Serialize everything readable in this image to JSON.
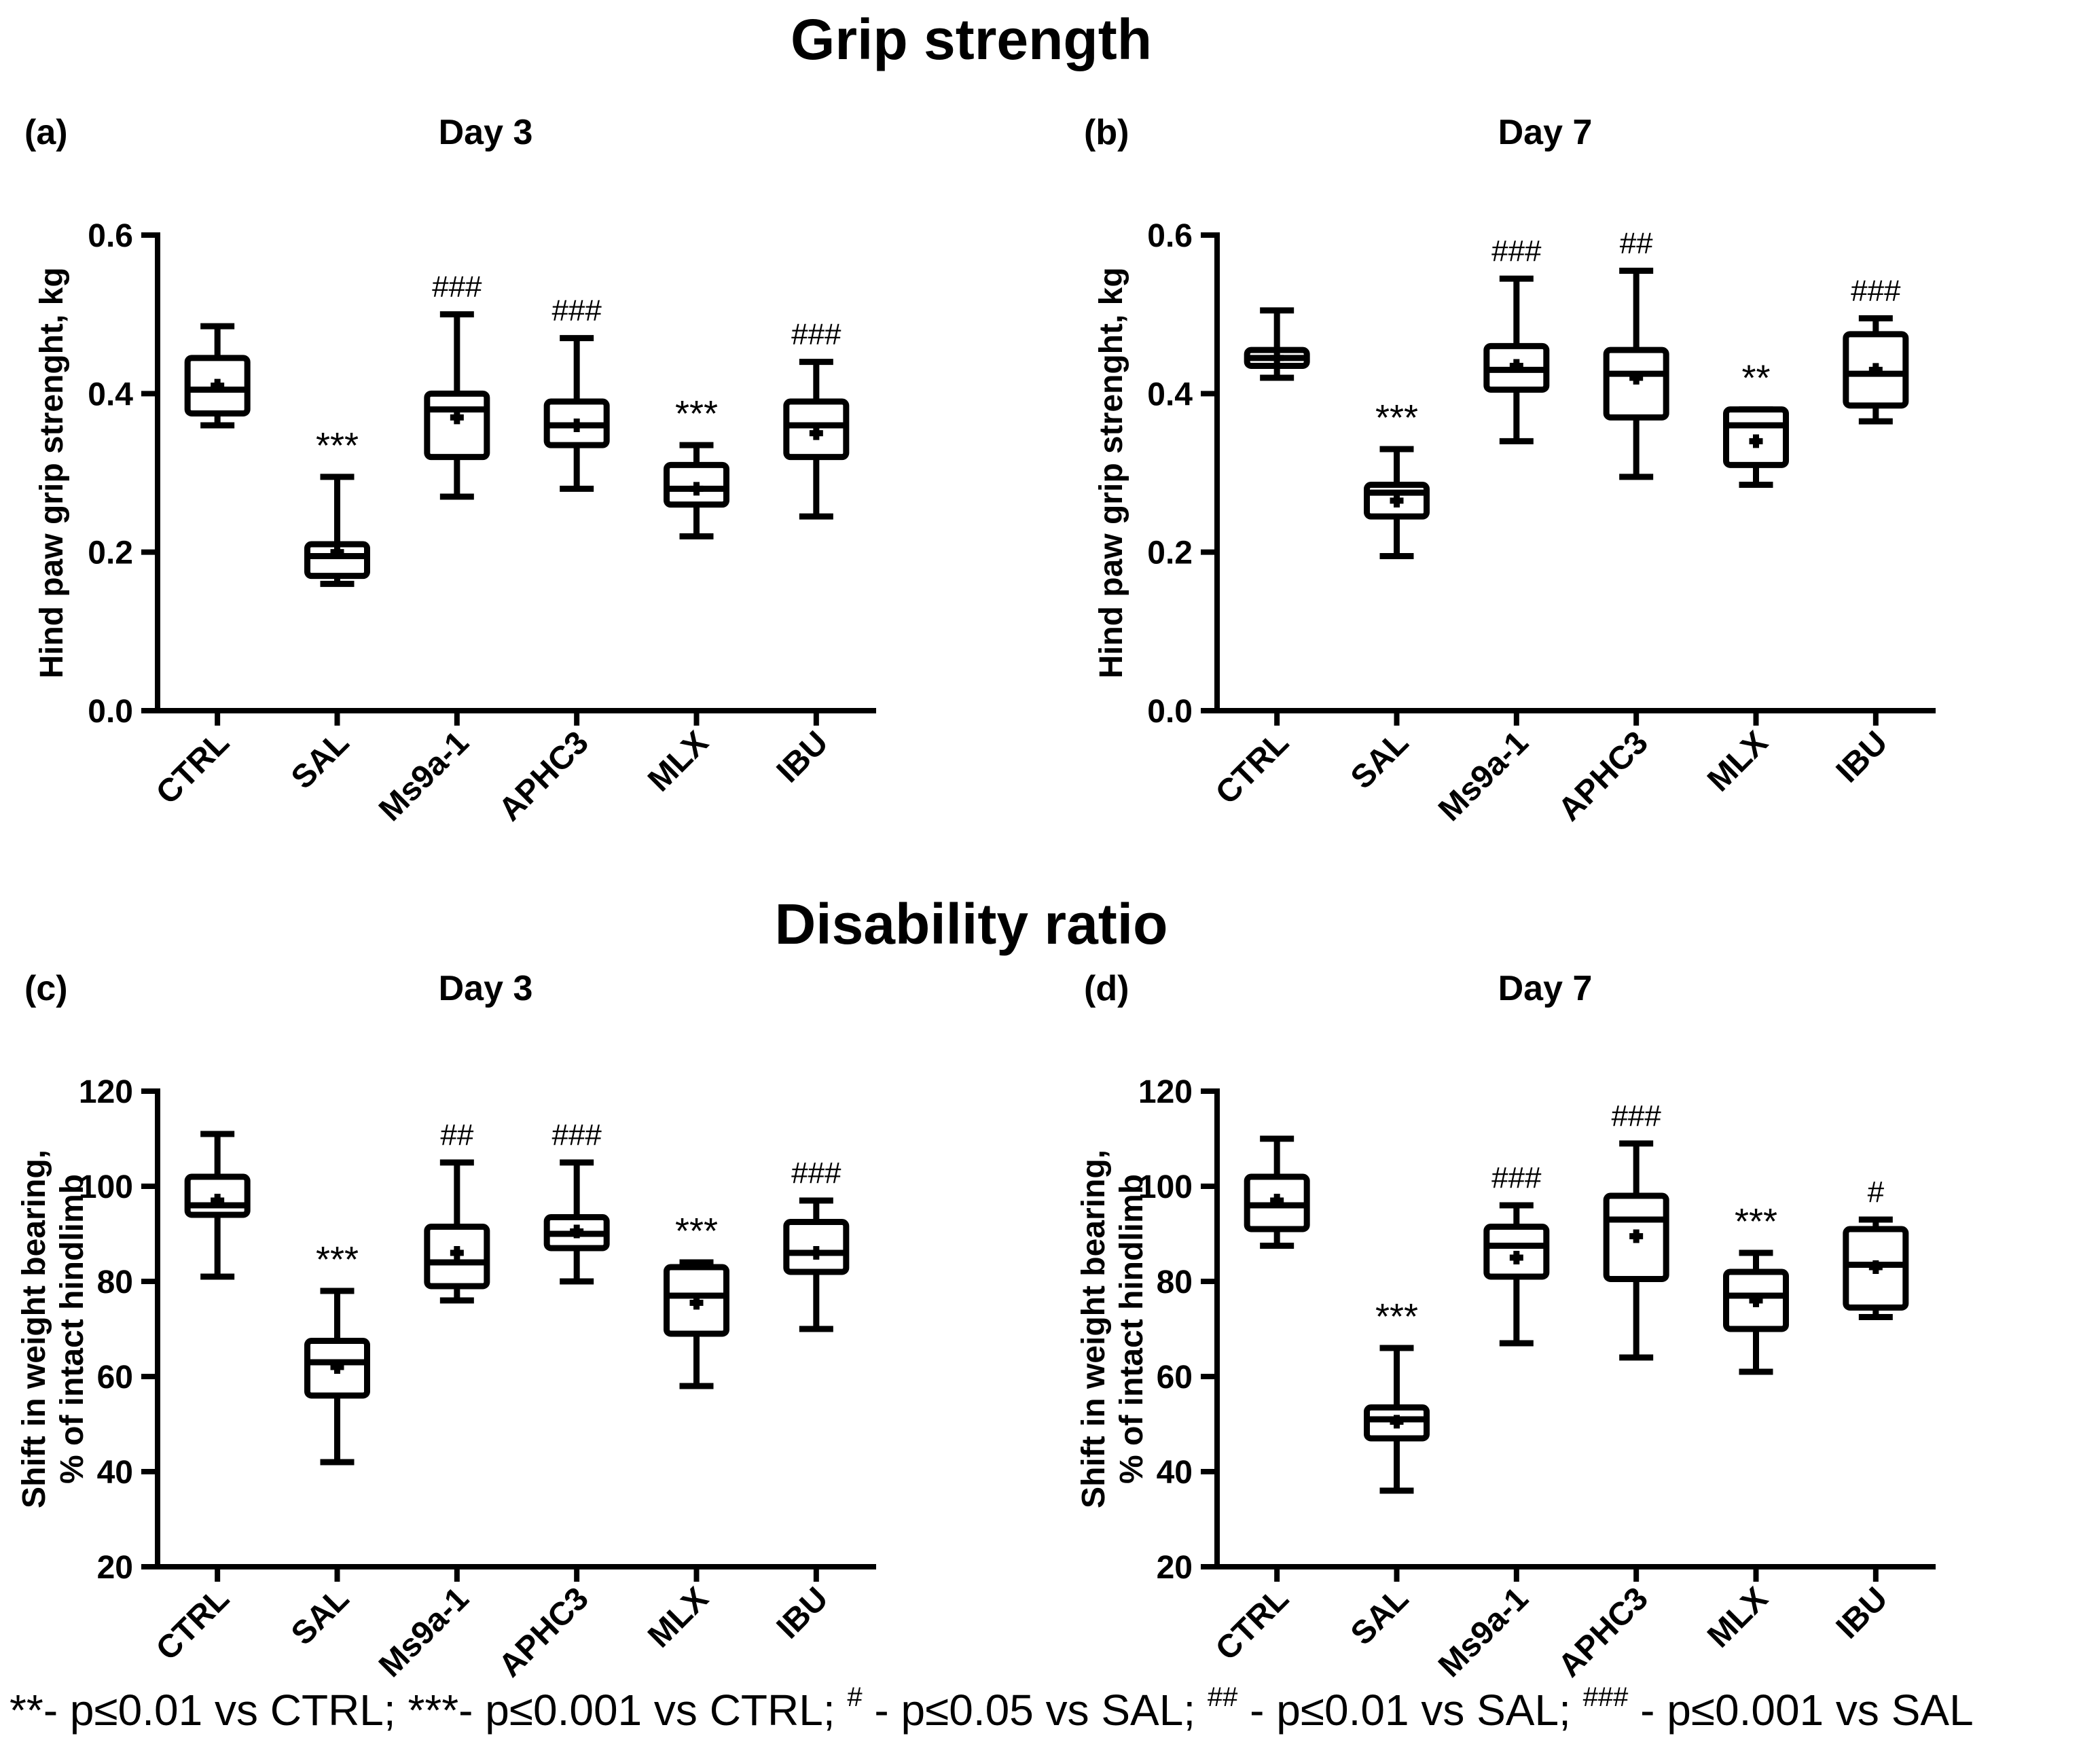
{
  "titles": {
    "grip": "Grip strength",
    "disability": "Disability ratio"
  },
  "chart_data": [
    {
      "type": "box",
      "panel": "(a)",
      "title": "Day 3",
      "ylabel": [
        "Hind paw grip strenght, kg"
      ],
      "ylim": [
        0,
        0.6
      ],
      "yticks": [
        0.0,
        0.2,
        0.4,
        0.6
      ],
      "ytick_labels": [
        "0.0",
        "0.2",
        "0.4",
        "0.6"
      ],
      "categories": [
        "CTRL",
        "SAL",
        "Ms9a-1",
        "APHC3",
        "MLX",
        "IBU"
      ],
      "boxes": [
        {
          "min": 0.36,
          "q1": 0.375,
          "median": 0.405,
          "q3": 0.445,
          "max": 0.485,
          "mean": 0.41,
          "annotation": ""
        },
        {
          "min": 0.16,
          "q1": 0.17,
          "median": 0.195,
          "q3": 0.21,
          "max": 0.295,
          "mean": 0.2,
          "annotation": "***"
        },
        {
          "min": 0.27,
          "q1": 0.32,
          "median": 0.38,
          "q3": 0.4,
          "max": 0.5,
          "mean": 0.37,
          "annotation": "###"
        },
        {
          "min": 0.28,
          "q1": 0.335,
          "median": 0.36,
          "q3": 0.39,
          "max": 0.47,
          "mean": 0.36,
          "annotation": "###"
        },
        {
          "min": 0.22,
          "q1": 0.26,
          "median": 0.28,
          "q3": 0.31,
          "max": 0.335,
          "mean": 0.28,
          "annotation": "***"
        },
        {
          "min": 0.245,
          "q1": 0.32,
          "median": 0.36,
          "q3": 0.39,
          "max": 0.44,
          "mean": 0.35,
          "annotation": "###"
        }
      ]
    },
    {
      "type": "box",
      "panel": "(b)",
      "title": "Day 7",
      "ylabel": [
        "Hind paw grip strenght, kg"
      ],
      "ylim": [
        0,
        0.6
      ],
      "yticks": [
        0.0,
        0.2,
        0.4,
        0.6
      ],
      "ytick_labels": [
        "0.0",
        "0.2",
        "0.4",
        "0.6"
      ],
      "categories": [
        "CTRL",
        "SAL",
        "Ms9a-1",
        "APHC3",
        "MLX",
        "IBU"
      ],
      "boxes": [
        {
          "min": 0.42,
          "q1": 0.435,
          "median": 0.445,
          "q3": 0.455,
          "max": 0.505,
          "mean": 0.445,
          "annotation": ""
        },
        {
          "min": 0.195,
          "q1": 0.245,
          "median": 0.275,
          "q3": 0.285,
          "max": 0.33,
          "mean": 0.265,
          "annotation": "***"
        },
        {
          "min": 0.34,
          "q1": 0.405,
          "median": 0.43,
          "q3": 0.46,
          "max": 0.545,
          "mean": 0.435,
          "annotation": "###"
        },
        {
          "min": 0.295,
          "q1": 0.37,
          "median": 0.425,
          "q3": 0.455,
          "max": 0.555,
          "mean": 0.42,
          "annotation": "##"
        },
        {
          "min": 0.285,
          "q1": 0.31,
          "median": 0.36,
          "q3": 0.38,
          "max": 0.38,
          "mean": 0.34,
          "annotation": "**"
        },
        {
          "min": 0.365,
          "q1": 0.385,
          "median": 0.425,
          "q3": 0.475,
          "max": 0.495,
          "mean": 0.43,
          "annotation": "###"
        }
      ]
    },
    {
      "type": "box",
      "panel": "(c)",
      "title": "Day 3",
      "ylabel": [
        "Shift in weight bearing,",
        "% of intact hindlimb"
      ],
      "ylim": [
        20,
        120
      ],
      "yticks": [
        20,
        40,
        60,
        80,
        100,
        120
      ],
      "ytick_labels": [
        "20",
        "40",
        "60",
        "80",
        "100",
        "120"
      ],
      "categories": [
        "CTRL",
        "SAL",
        "Ms9a-1",
        "APHC3",
        "MLX",
        "IBU"
      ],
      "boxes": [
        {
          "min": 81,
          "q1": 94,
          "median": 96,
          "q3": 102,
          "max": 111,
          "mean": 97,
          "annotation": ""
        },
        {
          "min": 42,
          "q1": 56,
          "median": 63,
          "q3": 67.5,
          "max": 78,
          "mean": 62,
          "annotation": "***"
        },
        {
          "min": 76,
          "q1": 79,
          "median": 84,
          "q3": 91.5,
          "max": 105,
          "mean": 86,
          "annotation": "##"
        },
        {
          "min": 80,
          "q1": 87,
          "median": 90,
          "q3": 93.5,
          "max": 105,
          "mean": 90.5,
          "annotation": "###"
        },
        {
          "min": 58,
          "q1": 69,
          "median": 77,
          "q3": 83,
          "max": 84,
          "mean": 75.5,
          "annotation": "***"
        },
        {
          "min": 70,
          "q1": 82,
          "median": 86,
          "q3": 92.5,
          "max": 97,
          "mean": 86,
          "annotation": "###"
        }
      ]
    },
    {
      "type": "box",
      "panel": "(d)",
      "title": "Day 7",
      "ylabel": [
        "Shift in weight bearing,",
        "% of intact hindlimb"
      ],
      "ylim": [
        20,
        120
      ],
      "yticks": [
        20,
        40,
        60,
        80,
        100,
        120
      ],
      "ytick_labels": [
        "20",
        "40",
        "60",
        "80",
        "100",
        "120"
      ],
      "categories": [
        "CTRL",
        "SAL",
        "Ms9a-1",
        "APHC3",
        "MLX",
        "IBU"
      ],
      "boxes": [
        {
          "min": 87.5,
          "q1": 91,
          "median": 96,
          "q3": 102,
          "max": 110,
          "mean": 97,
          "annotation": ""
        },
        {
          "min": 36,
          "q1": 47,
          "median": 51,
          "q3": 53.5,
          "max": 66,
          "mean": 50.5,
          "annotation": "***"
        },
        {
          "min": 67,
          "q1": 81,
          "median": 87.5,
          "q3": 91.5,
          "max": 96,
          "mean": 85,
          "annotation": "###"
        },
        {
          "min": 64,
          "q1": 80.5,
          "median": 93,
          "q3": 98,
          "max": 109,
          "mean": 89.5,
          "annotation": "###"
        },
        {
          "min": 61,
          "q1": 70,
          "median": 77,
          "q3": 82,
          "max": 86,
          "mean": 76,
          "annotation": "***"
        },
        {
          "min": 72.5,
          "q1": 74.5,
          "median": 83.5,
          "q3": 91,
          "max": 93,
          "mean": 83,
          "annotation": "#"
        }
      ]
    }
  ],
  "footnote": [
    {
      "text": "**- p≤0.01 vs CTRL; ***- p≤0.001 vs CTRL; ",
      "sup": false
    },
    {
      "text": "#",
      "sup": true
    },
    {
      "text": " - p≤0.05 vs SAL; ",
      "sup": false
    },
    {
      "text": "##",
      "sup": true
    },
    {
      "text": " - p≤0.01 vs SAL; ",
      "sup": false
    },
    {
      "text": "###",
      "sup": true
    },
    {
      "text": " - p≤0.001 vs SAL",
      "sup": false
    }
  ]
}
